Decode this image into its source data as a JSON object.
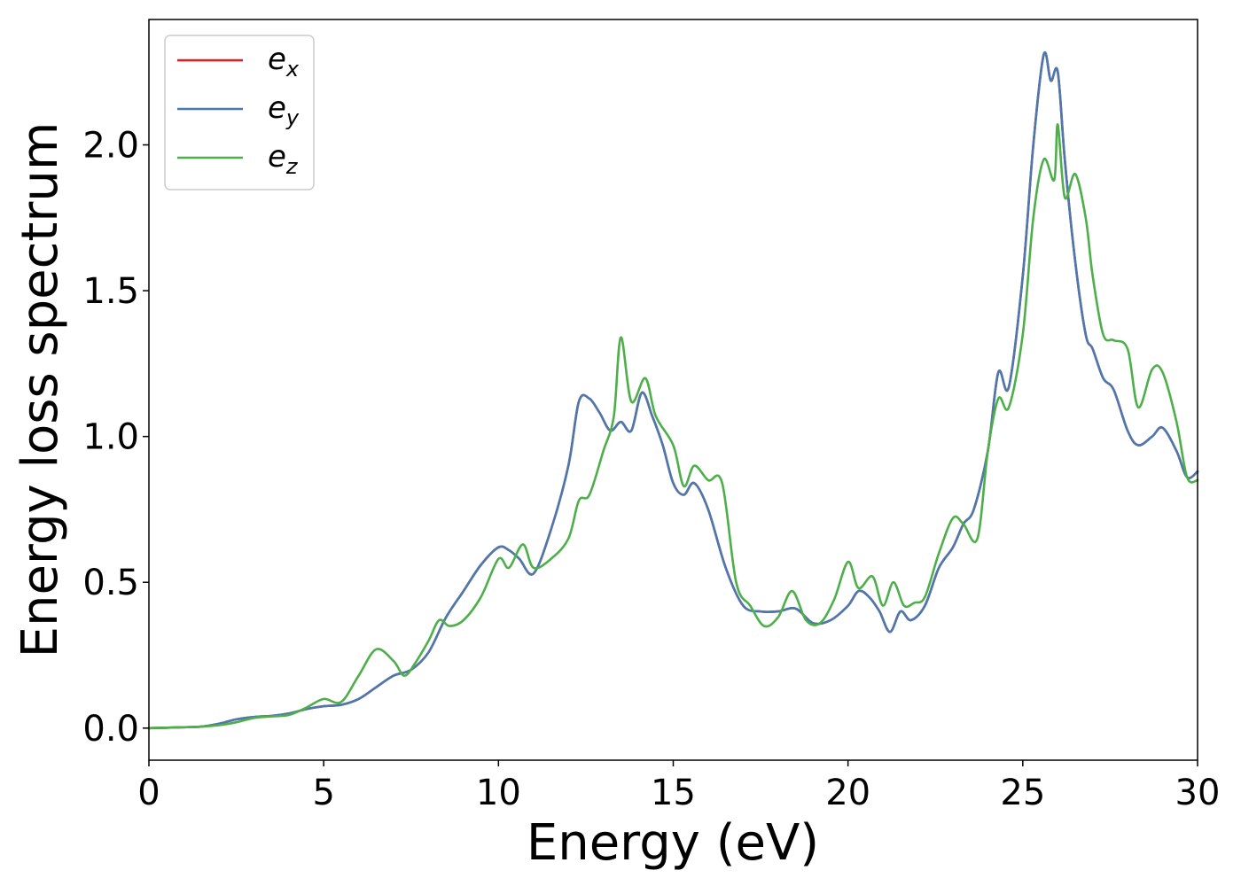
{
  "chart_data": {
    "type": "line",
    "xlabel": "Energy (eV)",
    "ylabel": "Energy loss spectrum",
    "xlim": [
      0,
      30
    ],
    "ylim": [
      -0.11,
      2.43
    ],
    "xticks": [
      "0",
      "5",
      "10",
      "15",
      "20",
      "25",
      "30"
    ],
    "yticks": [
      "0.0",
      "0.5",
      "1.0",
      "1.5",
      "2.0"
    ],
    "legend_position": "top-left",
    "grid": false,
    "series": [
      {
        "name": "e_x",
        "label_base": "e",
        "label_sub": "x",
        "color": "#e41a1c",
        "x": [
          0,
          1,
          1.5,
          2,
          2.5,
          3,
          3.5,
          4,
          4.5,
          5,
          5.5,
          6,
          6.5,
          7,
          7.5,
          8,
          8.5,
          9,
          9.5,
          10,
          10.3,
          10.6,
          11,
          11.5,
          12,
          12.3,
          12.6,
          12.9,
          13.2,
          13.5,
          13.8,
          14.1,
          14.4,
          14.7,
          15,
          15.3,
          15.6,
          16,
          16.5,
          17,
          17.5,
          18,
          18.5,
          19,
          19.5,
          20,
          20.3,
          20.6,
          20.9,
          21.2,
          21.5,
          21.8,
          22.2,
          22.6,
          23,
          23.3,
          23.6,
          24,
          24.3,
          24.6,
          25,
          25.3,
          25.6,
          25.8,
          26,
          26.2,
          26.5,
          26.8,
          27,
          27.3,
          27.6,
          28,
          28.3,
          28.7,
          29,
          29.4,
          29.7,
          30
        ],
        "y": [
          0,
          0.003,
          0.005,
          0.015,
          0.03,
          0.038,
          0.042,
          0.05,
          0.065,
          0.075,
          0.08,
          0.1,
          0.14,
          0.18,
          0.2,
          0.26,
          0.38,
          0.47,
          0.56,
          0.62,
          0.61,
          0.58,
          0.53,
          0.68,
          0.9,
          1.12,
          1.13,
          1.08,
          1.02,
          1.05,
          1.02,
          1.15,
          1.07,
          0.97,
          0.84,
          0.8,
          0.84,
          0.75,
          0.55,
          0.42,
          0.4,
          0.4,
          0.41,
          0.36,
          0.37,
          0.42,
          0.47,
          0.45,
          0.4,
          0.33,
          0.4,
          0.37,
          0.42,
          0.55,
          0.62,
          0.7,
          0.75,
          0.95,
          1.22,
          1.17,
          1.55,
          2.0,
          2.31,
          2.22,
          2.25,
          1.95,
          1.6,
          1.35,
          1.3,
          1.2,
          1.16,
          1.02,
          0.97,
          1.0,
          1.03,
          0.95,
          0.86,
          0.88
        ]
      },
      {
        "name": "e_y",
        "label_base": "e",
        "label_sub": "y",
        "color": "#4a79b0",
        "x": [
          0,
          1,
          1.5,
          2,
          2.5,
          3,
          3.5,
          4,
          4.5,
          5,
          5.5,
          6,
          6.5,
          7,
          7.5,
          8,
          8.5,
          9,
          9.5,
          10,
          10.3,
          10.6,
          11,
          11.5,
          12,
          12.3,
          12.6,
          12.9,
          13.2,
          13.5,
          13.8,
          14.1,
          14.4,
          14.7,
          15,
          15.3,
          15.6,
          16,
          16.5,
          17,
          17.5,
          18,
          18.5,
          19,
          19.5,
          20,
          20.3,
          20.6,
          20.9,
          21.2,
          21.5,
          21.8,
          22.2,
          22.6,
          23,
          23.3,
          23.6,
          24,
          24.3,
          24.6,
          25,
          25.3,
          25.6,
          25.8,
          26,
          26.2,
          26.5,
          26.8,
          27,
          27.3,
          27.6,
          28,
          28.3,
          28.7,
          29,
          29.4,
          29.7,
          30
        ],
        "y": [
          0,
          0.003,
          0.005,
          0.015,
          0.03,
          0.038,
          0.042,
          0.05,
          0.065,
          0.075,
          0.08,
          0.1,
          0.14,
          0.18,
          0.2,
          0.26,
          0.38,
          0.47,
          0.56,
          0.62,
          0.61,
          0.58,
          0.53,
          0.68,
          0.9,
          1.12,
          1.13,
          1.08,
          1.02,
          1.05,
          1.02,
          1.15,
          1.07,
          0.97,
          0.84,
          0.8,
          0.84,
          0.75,
          0.55,
          0.42,
          0.4,
          0.4,
          0.41,
          0.36,
          0.37,
          0.42,
          0.47,
          0.45,
          0.4,
          0.33,
          0.4,
          0.37,
          0.42,
          0.55,
          0.62,
          0.7,
          0.75,
          0.95,
          1.22,
          1.17,
          1.55,
          2.0,
          2.31,
          2.22,
          2.25,
          1.95,
          1.6,
          1.35,
          1.3,
          1.2,
          1.16,
          1.02,
          0.97,
          1.0,
          1.03,
          0.95,
          0.86,
          0.88
        ]
      },
      {
        "name": "e_z",
        "label_base": "e",
        "label_sub": "z",
        "color": "#4daf4a",
        "x": [
          0,
          1,
          1.5,
          2,
          2.5,
          3,
          3.5,
          4,
          4.5,
          5,
          5.5,
          6,
          6.5,
          7,
          7.3,
          7.6,
          8,
          8.3,
          8.6,
          9,
          9.5,
          10,
          10.3,
          10.7,
          11,
          11.5,
          12,
          12.3,
          12.6,
          13,
          13.3,
          13.5,
          13.8,
          14.2,
          14.5,
          15,
          15.3,
          15.6,
          16,
          16.4,
          16.8,
          17.2,
          17.6,
          18,
          18.4,
          18.8,
          19.2,
          19.6,
          20,
          20.3,
          20.7,
          21,
          21.3,
          21.6,
          21.9,
          22.2,
          22.6,
          23,
          23.3,
          23.7,
          24,
          24.3,
          24.6,
          25,
          25.3,
          25.6,
          25.9,
          26,
          26.2,
          26.5,
          26.8,
          27,
          27.3,
          27.6,
          28,
          28.3,
          28.7,
          29,
          29.4,
          29.7,
          30
        ],
        "y": [
          0,
          0.003,
          0.005,
          0.01,
          0.02,
          0.035,
          0.04,
          0.045,
          0.07,
          0.1,
          0.09,
          0.18,
          0.27,
          0.23,
          0.18,
          0.22,
          0.3,
          0.37,
          0.35,
          0.37,
          0.45,
          0.58,
          0.55,
          0.63,
          0.55,
          0.58,
          0.65,
          0.78,
          0.8,
          0.95,
          1.07,
          1.34,
          1.12,
          1.2,
          1.07,
          0.97,
          0.83,
          0.9,
          0.85,
          0.84,
          0.5,
          0.42,
          0.35,
          0.38,
          0.47,
          0.37,
          0.36,
          0.44,
          0.57,
          0.48,
          0.52,
          0.42,
          0.5,
          0.42,
          0.43,
          0.45,
          0.6,
          0.72,
          0.7,
          0.65,
          0.95,
          1.13,
          1.1,
          1.35,
          1.75,
          1.95,
          1.88,
          2.07,
          1.82,
          1.9,
          1.75,
          1.55,
          1.35,
          1.33,
          1.3,
          1.1,
          1.23,
          1.22,
          1.05,
          0.86,
          0.85
        ]
      }
    ]
  }
}
